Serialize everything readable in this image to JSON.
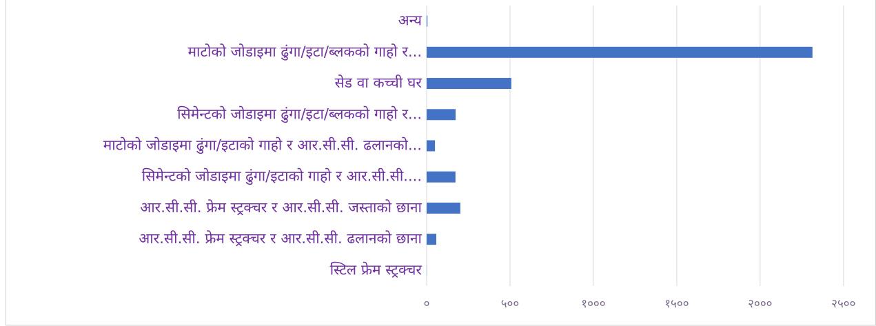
{
  "chart_data": {
    "type": "bar",
    "orientation": "horizontal",
    "categories": [
      "अन्य",
      "माटोको जोडाइमा ढुंगा/इटा/ब्लकको गाहो र...",
      "सेड वा कच्ची घर",
      "सिमेन्टको जोडाइमा ढुंगा/इटा/ब्लकको गाहो र...",
      "माटोको जोडाइमा ढुंगा/इटाको गाहो र आर.सी.सी. ढलानको...",
      "सिमेन्टको जोडाइमा ढुंगा/इटाको गाहो र आर.सी.सी....",
      "आर.सी.सी. फ्रेम स्ट्रक्चर र आर.सी.सी. जस्ताको छाना",
      "आर.सी.सी. फ्रेम स्ट्रक्चर र आर.सी.सी. ढलानको छाना",
      "स्टिल फ्रेम स्ट्रक्चर"
    ],
    "values": [
      5,
      2314,
      508,
      174,
      50,
      173,
      202,
      58,
      1
    ],
    "color": "#4472c4",
    "xlim": [
      0,
      2600
    ],
    "xticks": [
      {
        "value": 0,
        "label": "०"
      },
      {
        "value": 500,
        "label": "५००"
      },
      {
        "value": 1000,
        "label": "१०००"
      },
      {
        "value": 1500,
        "label": "१५००"
      },
      {
        "value": 2000,
        "label": "२०००"
      },
      {
        "value": 2500,
        "label": "२५००"
      }
    ],
    "grid": true
  }
}
